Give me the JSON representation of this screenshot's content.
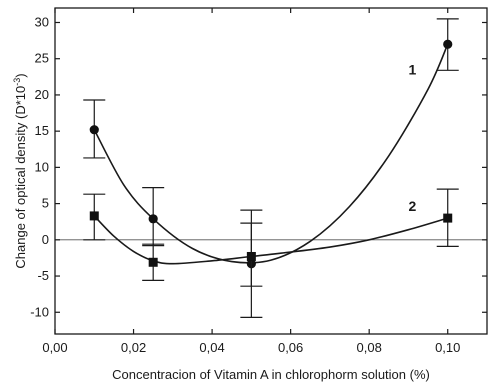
{
  "chart_data": {
    "type": "scatter",
    "xlabel": "Concentracion of Vitamin A in chlorophorm solution (%)",
    "ylabel": "Change of optical density (D*10",
    "ylabel_superscript": "-3",
    "ylabel_close": ")",
    "xlim": [
      0.0,
      0.11
    ],
    "ylim": [
      -13,
      32
    ],
    "x_ticks": [
      {
        "value": 0.0,
        "label": "0,00"
      },
      {
        "value": 0.02,
        "label": "0,02"
      },
      {
        "value": 0.04,
        "label": "0,04"
      },
      {
        "value": 0.06,
        "label": "0,06"
      },
      {
        "value": 0.08,
        "label": "0,08"
      },
      {
        "value": 0.1,
        "label": "0,10"
      }
    ],
    "y_ticks": [
      {
        "value": -10,
        "label": "-10"
      },
      {
        "value": -5,
        "label": "-5"
      },
      {
        "value": 0,
        "label": "0"
      },
      {
        "value": 5,
        "label": "5"
      },
      {
        "value": 10,
        "label": "10"
      },
      {
        "value": 15,
        "label": "15"
      },
      {
        "value": 20,
        "label": "20"
      },
      {
        "value": 25,
        "label": "25"
      },
      {
        "value": 30,
        "label": "30"
      }
    ],
    "grid": false,
    "zero_reference_line": true,
    "series": [
      {
        "name": "1",
        "marker": "circle",
        "x": [
          0.01,
          0.025,
          0.05,
          0.1
        ],
        "y": [
          15.2,
          2.9,
          -3.3,
          27.0
        ],
        "err_low": [
          11.3,
          -0.8,
          -10.7,
          23.4
        ],
        "err_high": [
          19.3,
          7.2,
          4.1,
          30.5
        ],
        "curve_x": [
          0.01,
          0.0175,
          0.025,
          0.035,
          0.045,
          0.055,
          0.065,
          0.075,
          0.085,
          0.095,
          0.1
        ],
        "curve_y": [
          15.2,
          7.6,
          2.9,
          -1.2,
          -3.0,
          -2.8,
          -0.2,
          4.6,
          11.6,
          20.8,
          27.0
        ],
        "label_position": [
          0.091,
          22.8
        ]
      },
      {
        "name": "2",
        "marker": "square",
        "x": [
          0.01,
          0.025,
          0.05,
          0.1
        ],
        "y": [
          3.3,
          -3.1,
          -2.3,
          3.0
        ],
        "err_low": [
          0.0,
          -5.6,
          -6.4,
          -0.9
        ],
        "err_high": [
          6.3,
          -0.6,
          2.3,
          7.0
        ],
        "curve_x": [
          0.01,
          0.015,
          0.02,
          0.025,
          0.03,
          0.04,
          0.05,
          0.06,
          0.07,
          0.08,
          0.09,
          0.1
        ],
        "curve_y": [
          3.3,
          0.5,
          -1.6,
          -2.9,
          -3.3,
          -2.9,
          -2.3,
          -1.7,
          -1.0,
          0.0,
          1.4,
          3.0
        ],
        "label_position": [
          0.091,
          4.0
        ]
      }
    ]
  }
}
